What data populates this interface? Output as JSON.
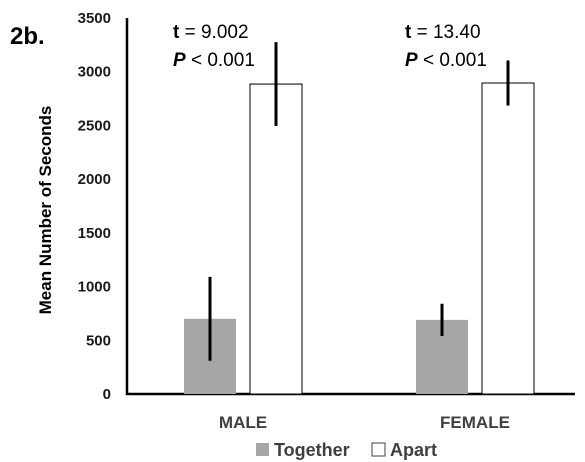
{
  "panel_label": "2b.",
  "chart_data": {
    "type": "bar",
    "categories": [
      "MALE",
      "FEMALE"
    ],
    "series": [
      {
        "name": "Together",
        "values": [
          700,
          690
        ],
        "error": [
          390,
          150
        ],
        "color": "#a6a6a6"
      },
      {
        "name": "Apart",
        "values": [
          2885,
          2895
        ],
        "error": [
          390,
          210
        ],
        "color": "#ffffff"
      }
    ],
    "ylabel": "Mean Number of Seconds",
    "xlabel": "",
    "ylim": [
      0,
      3500
    ],
    "yticks": [
      0,
      500,
      1000,
      1500,
      2000,
      2500,
      3000,
      3500
    ],
    "grid": false,
    "legend": "bottom",
    "annotations": [
      {
        "category": "MALE",
        "t_label": "t",
        "t_value": " = 9.002",
        "p_label": "P",
        "p_value": " < 0.001"
      },
      {
        "category": "FEMALE",
        "t_label": "t",
        "t_value": " = 13.40",
        "p_label": "P",
        "p_value": " < 0.001"
      }
    ]
  }
}
